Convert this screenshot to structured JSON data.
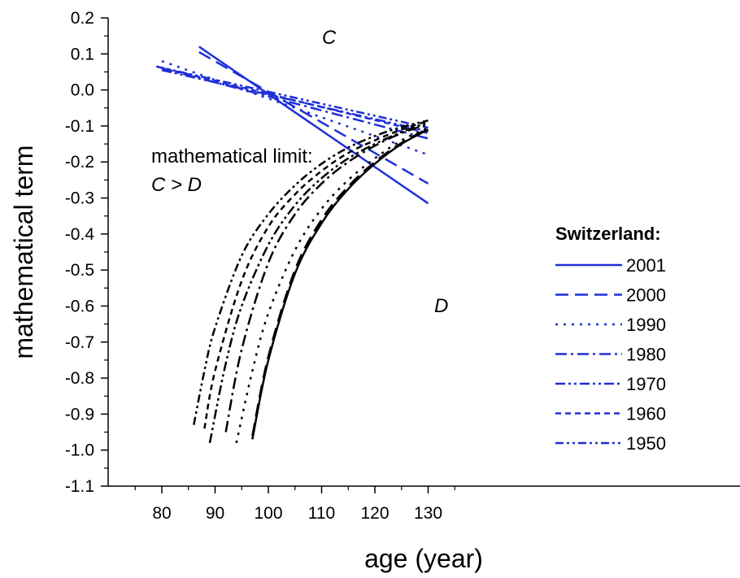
{
  "chart_data": {
    "type": "line",
    "xlabel": "age (year)",
    "ylabel": "mathematical term",
    "xlim": [
      75,
      135
    ],
    "ylim": [
      -1.1,
      0.2
    ],
    "xticks": [
      "80",
      "90",
      "100",
      "110",
      "120",
      "130"
    ],
    "yticks": [
      "0.2",
      "0.1",
      "0.0",
      "-0.1",
      "-0.2",
      "-0.3",
      "-0.4",
      "-0.5",
      "-0.6",
      "-0.7",
      "-0.8",
      "-0.9",
      "-1.0",
      "-1.1"
    ],
    "annotations": {
      "c_label": "C",
      "d_label": "D",
      "limit_line1": "mathematical limit:",
      "limit_line2": "C > D"
    },
    "legend": {
      "title": "Switzerland:",
      "placement": "right",
      "entries": [
        "2001",
        "2000",
        "1990",
        "1980",
        "1970",
        "1960",
        "1950"
      ]
    },
    "colors": {
      "C": "#1f2fd8",
      "D": "#000000"
    },
    "series_C": [
      {
        "name": "2001",
        "dash": "solid",
        "x": [
          87,
          130
        ],
        "y": [
          0.12,
          -0.315
        ]
      },
      {
        "name": "2000",
        "dash": "dash",
        "x": [
          87,
          130
        ],
        "y": [
          0.105,
          -0.26
        ]
      },
      {
        "name": "1990",
        "dash": "dot",
        "x": [
          80,
          130
        ],
        "y": [
          0.08,
          -0.18
        ]
      },
      {
        "name": "1980",
        "dash": "dashdot",
        "x": [
          80,
          130
        ],
        "y": [
          0.06,
          -0.135
        ]
      },
      {
        "name": "1970",
        "dash": "dashdotdot",
        "x": [
          80,
          130
        ],
        "y": [
          0.055,
          -0.115
        ]
      },
      {
        "name": "1960",
        "dash": "shortdash",
        "x": [
          79,
          130
        ],
        "y": [
          0.065,
          -0.12
        ]
      },
      {
        "name": "1950",
        "dash": "dashdotdot2",
        "x": [
          79,
          130
        ],
        "y": [
          0.065,
          -0.105
        ]
      }
    ],
    "series_D": [
      {
        "name": "2001",
        "dash": "solid",
        "x": [
          97,
          100,
          105,
          110,
          115,
          120,
          125,
          130
        ],
        "y": [
          -0.97,
          -0.75,
          -0.51,
          -0.37,
          -0.275,
          -0.205,
          -0.15,
          -0.11
        ]
      },
      {
        "name": "2000",
        "dash": "dash",
        "x": [
          97,
          100,
          105,
          110,
          115,
          120,
          125,
          130
        ],
        "y": [
          -0.96,
          -0.74,
          -0.5,
          -0.36,
          -0.268,
          -0.2,
          -0.147,
          -0.107
        ]
      },
      {
        "name": "1990",
        "dash": "dot",
        "x": [
          94,
          97,
          100,
          105,
          110,
          115,
          120,
          125,
          130
        ],
        "y": [
          -0.98,
          -0.78,
          -0.62,
          -0.445,
          -0.33,
          -0.25,
          -0.19,
          -0.14,
          -0.105
        ]
      },
      {
        "name": "1980",
        "dash": "dashdot",
        "x": [
          92,
          95,
          100,
          105,
          110,
          115,
          120,
          125,
          130
        ],
        "y": [
          -0.95,
          -0.72,
          -0.48,
          -0.345,
          -0.26,
          -0.2,
          -0.155,
          -0.12,
          -0.095
        ]
      },
      {
        "name": "1970",
        "dash": "dashdotdot",
        "x": [
          89,
          92,
          95,
          100,
          105,
          110,
          115,
          120,
          125,
          130
        ],
        "y": [
          -0.98,
          -0.76,
          -0.6,
          -0.43,
          -0.32,
          -0.245,
          -0.19,
          -0.15,
          -0.117,
          -0.09
        ]
      },
      {
        "name": "1960",
        "dash": "shortdash",
        "x": [
          88,
          90,
          95,
          100,
          105,
          110,
          115,
          120,
          125,
          130
        ],
        "y": [
          -0.94,
          -0.78,
          -0.53,
          -0.38,
          -0.29,
          -0.225,
          -0.175,
          -0.14,
          -0.11,
          -0.086
        ]
      },
      {
        "name": "1950",
        "dash": "dashdotdot2",
        "x": [
          86,
          88,
          90,
          95,
          100,
          105,
          110,
          115,
          120,
          125,
          130
        ],
        "y": [
          -0.93,
          -0.78,
          -0.66,
          -0.46,
          -0.345,
          -0.265,
          -0.205,
          -0.16,
          -0.128,
          -0.103,
          -0.085
        ]
      }
    ]
  }
}
